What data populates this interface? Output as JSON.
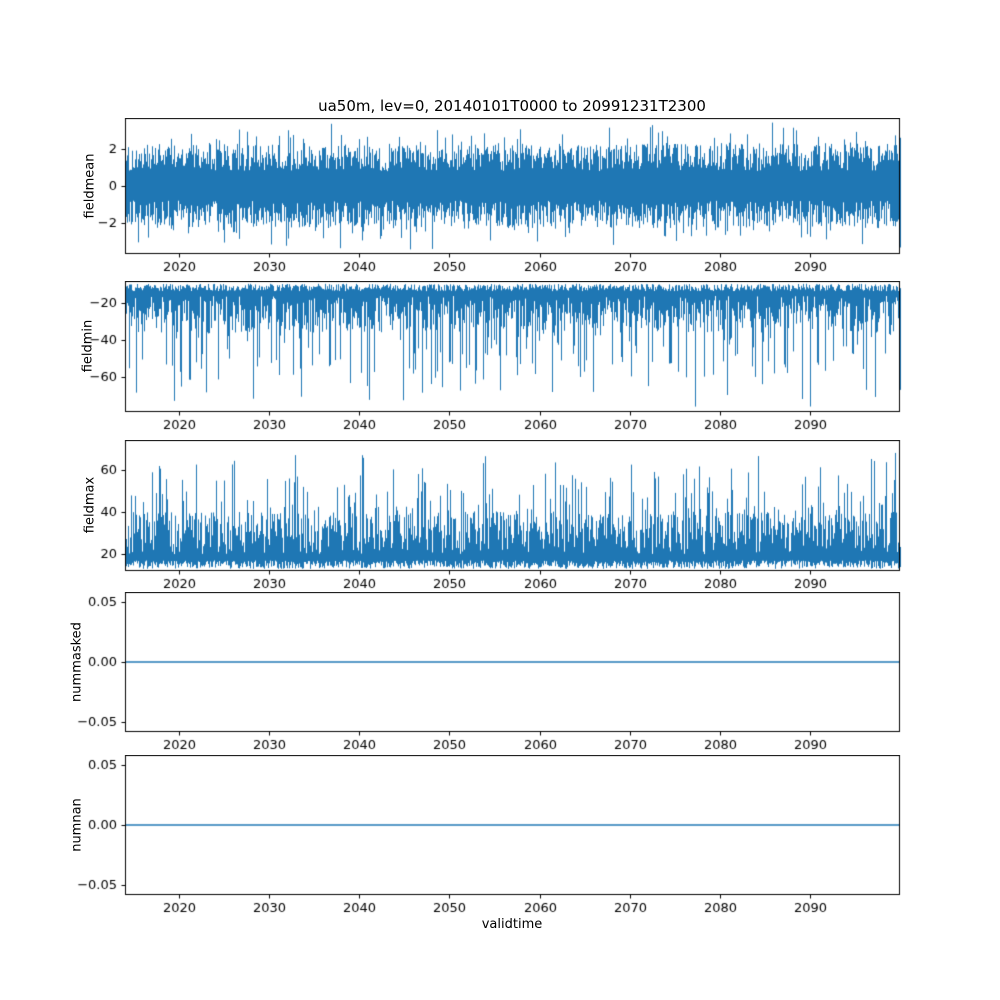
{
  "figure": {
    "title": "ua50m, lev=0, 20140101T0000 to 20991231T2300",
    "xlabel": "validtime",
    "line_color": "#1f77b4",
    "frame_color": "#000000",
    "background_color": "#ffffff"
  },
  "chart_data": [
    {
      "type": "line",
      "ylabel": "fieldmean",
      "xlim": [
        2014,
        2100
      ],
      "x_ticks": [
        2020,
        2030,
        2040,
        2050,
        2060,
        2070,
        2080,
        2090
      ],
      "ylim": [
        -3.7,
        3.7
      ],
      "y_ticks": [
        -2,
        0,
        2
      ],
      "y_tick_decimals": 0,
      "grid": false,
      "legend": "none",
      "series": [
        {
          "name": "fieldmean",
          "description": "dense high-frequency noise centered on 0; typical band +/-2.3, extreme spikes to about +/-3.4",
          "approx_min": -3.4,
          "approx_max": 3.4,
          "signal": {
            "kind": "noise_band",
            "seed": 101,
            "top": {
              "base": 0.8,
              "var": 1.5,
              "spike_p": 0.13,
              "spike_amp": 1.35,
              "clamp": 3.45
            },
            "bottom": {
              "base": -0.8,
              "var": -1.5,
              "spike_p": 0.13,
              "spike_amp": -1.35,
              "clamp": -3.45
            }
          }
        }
      ]
    },
    {
      "type": "line",
      "ylabel": "fieldmin",
      "xlim": [
        2014,
        2100
      ],
      "x_ticks": [
        2020,
        2030,
        2040,
        2050,
        2060,
        2070,
        2080,
        2090
      ],
      "ylim": [
        -79,
        -8
      ],
      "y_ticks": [
        -20,
        -40,
        -60
      ],
      "y_tick_decimals": 0,
      "grid": false,
      "legend": "none",
      "series": [
        {
          "name": "fieldmin",
          "description": "dense noise with upper envelope near -10 and frequent downward spikes; deepest about -77",
          "approx_min": -77,
          "approx_max": -9,
          "signal": {
            "kind": "noise_band",
            "seed": 202,
            "top": {
              "base": -9.5,
              "var": -4,
              "spike_p": 0,
              "spike_amp": 0,
              "clamp": -9
            },
            "bottom": {
              "base": -16,
              "var": -20,
              "spike_p": 0.28,
              "spike_amp": -42,
              "clamp": -77
            }
          }
        }
      ]
    },
    {
      "type": "line",
      "ylabel": "fieldmax",
      "xlim": [
        2014,
        2100
      ],
      "x_ticks": [
        2020,
        2030,
        2040,
        2050,
        2060,
        2070,
        2080,
        2090
      ],
      "ylim": [
        12,
        74
      ],
      "y_ticks": [
        20,
        40,
        60
      ],
      "y_tick_decimals": 0,
      "grid": false,
      "legend": "none",
      "series": [
        {
          "name": "fieldmax",
          "description": "dense noise with lower envelope near 14 and frequent upward spikes; highest about 72",
          "approx_min": 13,
          "approx_max": 72,
          "signal": {
            "kind": "noise_band",
            "seed": 303,
            "top": {
              "base": 20,
              "var": 20,
              "spike_p": 0.3,
              "spike_amp": 30,
              "clamp": 72
            },
            "bottom": {
              "base": 13,
              "var": 4,
              "spike_p": 0,
              "spike_amp": 0,
              "clamp": 12
            }
          }
        }
      ]
    },
    {
      "type": "line",
      "ylabel": "nummasked",
      "xlim": [
        2014,
        2100
      ],
      "x_ticks": [
        2020,
        2030,
        2040,
        2050,
        2060,
        2070,
        2080,
        2090
      ],
      "ylim": [
        -0.058,
        0.058
      ],
      "y_ticks": [
        -0.05,
        0,
        0.05
      ],
      "y_tick_decimals": 2,
      "grid": false,
      "legend": "none",
      "series": [
        {
          "name": "nummasked",
          "description": "constant zero for the whole period",
          "approx_min": 0,
          "approx_max": 0,
          "signal": {
            "kind": "constant",
            "value": 0
          }
        }
      ]
    },
    {
      "type": "line",
      "ylabel": "numnan",
      "xlim": [
        2014,
        2100
      ],
      "x_ticks": [
        2020,
        2030,
        2040,
        2050,
        2060,
        2070,
        2080,
        2090
      ],
      "ylim": [
        -0.058,
        0.058
      ],
      "y_ticks": [
        -0.05,
        0,
        0.05
      ],
      "y_tick_decimals": 2,
      "grid": false,
      "legend": "none",
      "series": [
        {
          "name": "numnan",
          "description": "constant zero for the whole period",
          "approx_min": 0,
          "approx_max": 0,
          "signal": {
            "kind": "constant",
            "value": 0
          }
        }
      ]
    }
  ]
}
